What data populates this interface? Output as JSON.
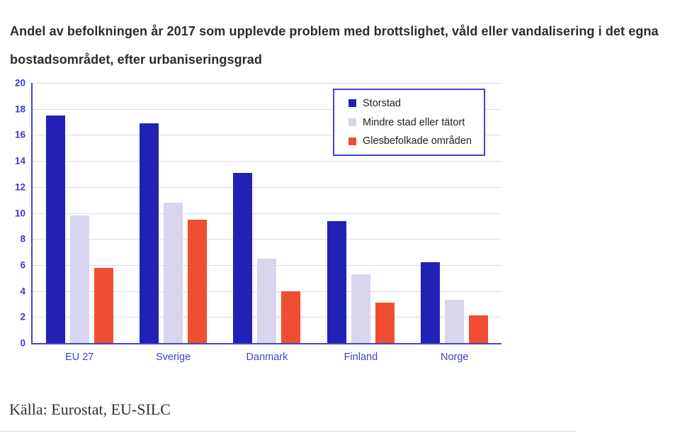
{
  "page": {
    "title": "Andel av befolkningen år 2017 som upplevde problem med brottslighet, våld eller vandalisering i det egna bostadsområdet, efter urbaniseringsgrad",
    "source": "Källa: Eurostat, EU-SILC"
  },
  "colors": {
    "storstad": "#2121b5",
    "mindre_stad": "#d8d5ee",
    "glesbefolkade": "#f04e32",
    "axis_line": "#4545c8",
    "gridline": "#dcdaf0",
    "ytick_label": "#3b3bd1",
    "category_label": "#4040d6",
    "legend_border": "#4545c8",
    "title_text": "#2b2b2b"
  },
  "chart_data": {
    "type": "bar",
    "title": "Andel av befolkningen år 2017 som upplevde problem med brottslighet, våld eller vandalisering i det egna bostadsområdet, efter urbaniseringsgrad",
    "categories": [
      "EU 27",
      "Sverige",
      "Danmark",
      "Finland",
      "Norge"
    ],
    "series": [
      {
        "name": "Storstad",
        "color": "#2121b5",
        "values": [
          17.5,
          16.9,
          13.1,
          9.4,
          6.2
        ]
      },
      {
        "name": "Mindre stad eller tätort",
        "color": "#d8d5ee",
        "values": [
          9.8,
          10.8,
          6.5,
          5.3,
          3.3
        ]
      },
      {
        "name": "Glesbefolkade områden",
        "color": "#f04e32",
        "values": [
          5.8,
          9.5,
          4.0,
          3.1,
          2.1
        ]
      }
    ],
    "xlabel": "",
    "ylabel": "",
    "ylim": [
      0,
      20
    ],
    "yticks": [
      0,
      2,
      4,
      6,
      8,
      10,
      12,
      14,
      16,
      18,
      20
    ],
    "grid": true,
    "legend_position": "top-right"
  }
}
